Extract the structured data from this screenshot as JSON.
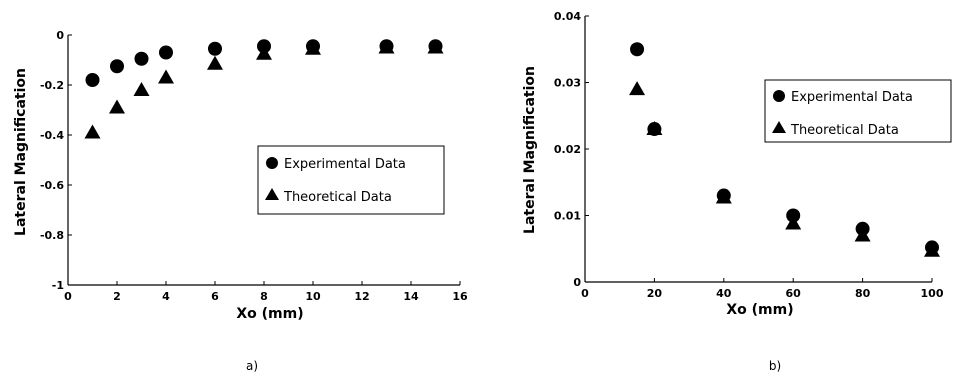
{
  "chart_data": [
    {
      "type": "scatter",
      "title": "",
      "caption": "a)",
      "xlabel": "Xo (mm)",
      "ylabel": "Lateral Magnification",
      "xlim": [
        0,
        16
      ],
      "ylim": [
        -1,
        0
      ],
      "x_ticks": [
        0,
        2,
        4,
        6,
        8,
        10,
        12,
        14,
        16
      ],
      "y_ticks": [
        0,
        -0.2,
        -0.4,
        -0.6,
        -0.8,
        -1
      ],
      "y_tick_labels": [
        "0",
        "-0.2",
        "-0.4",
        "-0.6",
        "-0.8",
        "-1"
      ],
      "grid": false,
      "legend": "center-right",
      "series": [
        {
          "name": "Experimental Data",
          "marker": "circle",
          "x": [
            1,
            2,
            3,
            4,
            6,
            8,
            10,
            13,
            15
          ],
          "y": [
            -0.18,
            -0.125,
            -0.095,
            -0.07,
            -0.055,
            -0.045,
            -0.045,
            -0.045,
            -0.045
          ]
        },
        {
          "name": "Theoretical Data",
          "marker": "triangle",
          "x": [
            1,
            2,
            3,
            4,
            6,
            8,
            10,
            13,
            15
          ],
          "y": [
            -0.39,
            -0.29,
            -0.22,
            -0.17,
            -0.115,
            -0.075,
            -0.055,
            -0.05,
            -0.05
          ]
        }
      ]
    },
    {
      "type": "scatter",
      "title": "",
      "caption": "b)",
      "xlabel": "Xo (mm)",
      "ylabel": "Lateral Magnification",
      "xlim": [
        0,
        100
      ],
      "ylim": [
        0,
        0.04
      ],
      "x_ticks": [
        0,
        20,
        40,
        60,
        80,
        100
      ],
      "y_ticks": [
        0,
        0.01,
        0.02,
        0.03,
        0.04
      ],
      "y_tick_labels": [
        "0",
        "0.01",
        "0.02",
        "0.03",
        "0.04"
      ],
      "grid": false,
      "legend": "top-right",
      "series": [
        {
          "name": "Experimental Data",
          "marker": "circle",
          "x": [
            15,
            20,
            40,
            60,
            80,
            100
          ],
          "y": [
            0.035,
            0.023,
            0.013,
            0.01,
            0.008,
            0.0052
          ]
        },
        {
          "name": "Theoretical Data",
          "marker": "triangle",
          "x": [
            15,
            20,
            40,
            60,
            80,
            100
          ],
          "y": [
            0.029,
            0.023,
            0.0127,
            0.0088,
            0.007,
            0.0047
          ]
        }
      ]
    }
  ]
}
